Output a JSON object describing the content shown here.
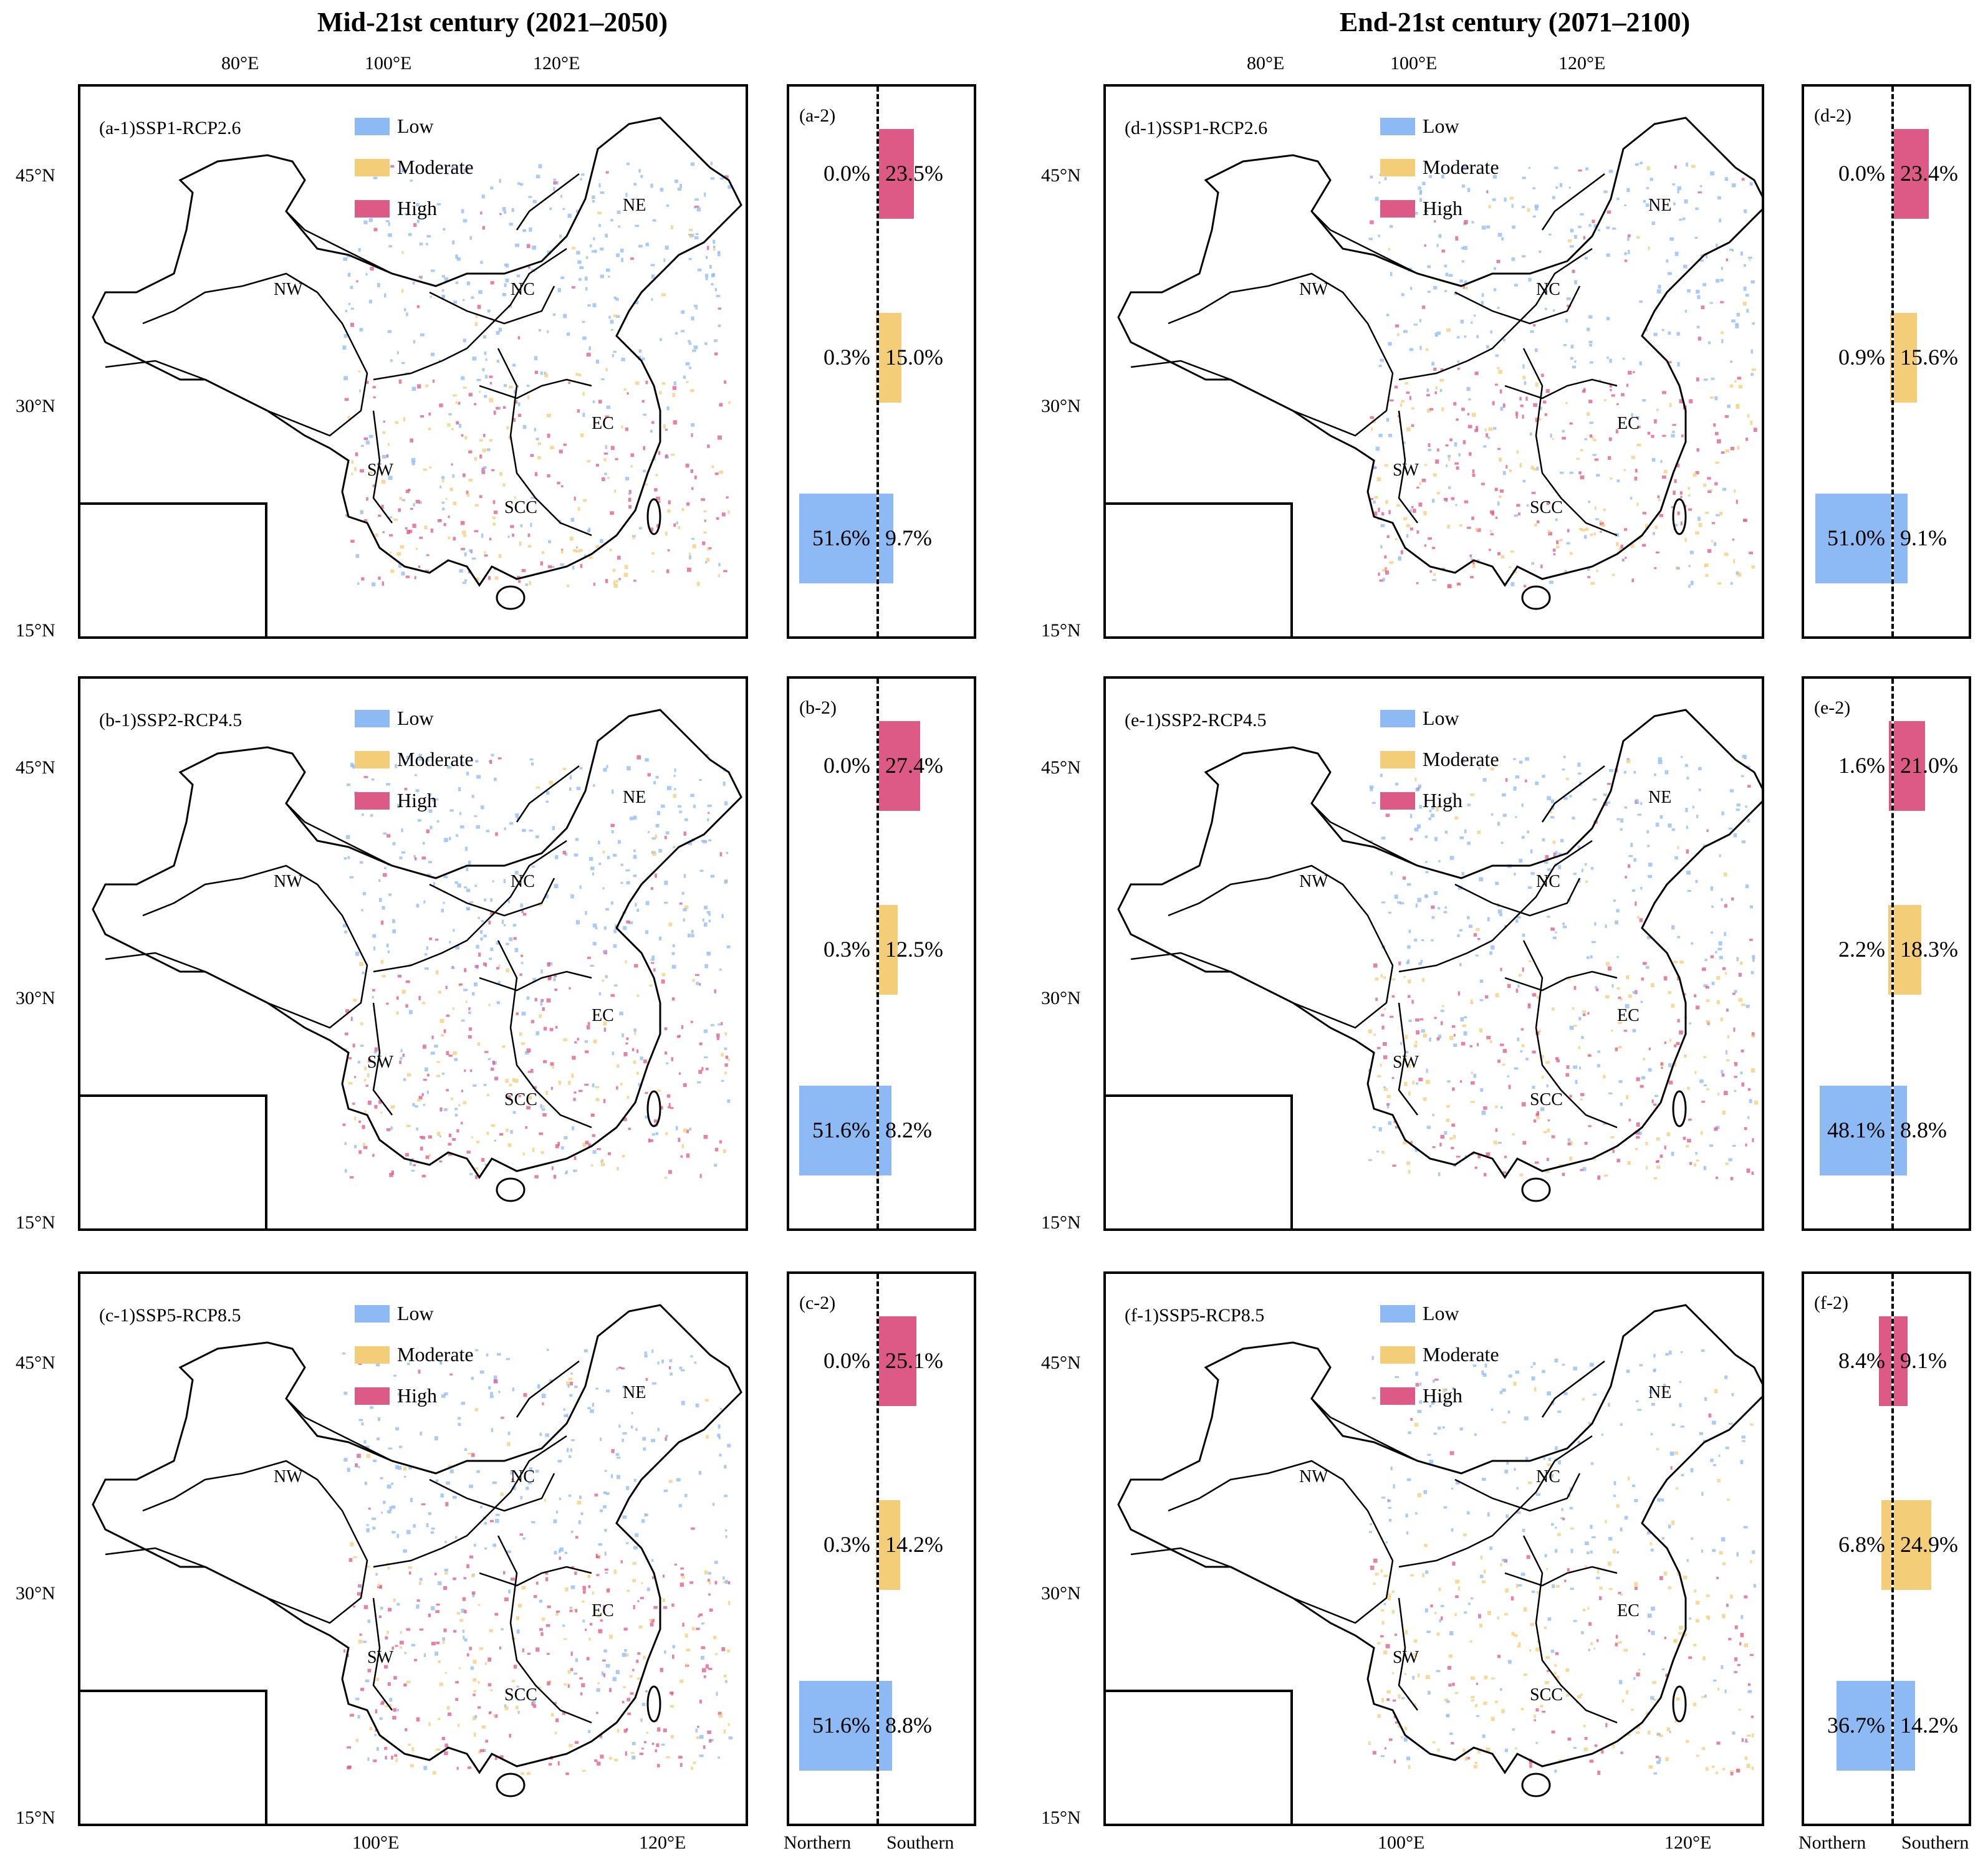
{
  "titles": {
    "mid": "Mid-21st century (2021–2050)",
    "end": "End-21st century (2071–2100)"
  },
  "legend": {
    "low": "Low",
    "moderate": "Moderate",
    "high": "High"
  },
  "colors": {
    "low": "#8db9f4",
    "moderate": "#f3cd78",
    "high": "#de5a86"
  },
  "axes": {
    "top_lon": [
      "80°E",
      "100°E",
      "120°E"
    ],
    "bottom_lon": [
      "100°E",
      "120°E"
    ],
    "lat": [
      "45°N",
      "30°N",
      "15°N"
    ],
    "bar_x": [
      "Northern",
      "Southern"
    ]
  },
  "regions": [
    "NE",
    "NW",
    "NC",
    "EC",
    "SW",
    "SCC"
  ],
  "panels": {
    "a": {
      "map_label": "(a-1)SSP1-RCP2.6",
      "bar_label": "(a-2)",
      "high": {
        "north": "0.0%",
        "south": "23.5%"
      },
      "moderate": {
        "north": "0.3%",
        "south": "15.0%"
      },
      "low": {
        "north": "51.6%",
        "south": "9.7%"
      }
    },
    "b": {
      "map_label": "(b-1)SSP2-RCP4.5",
      "bar_label": "(b-2)",
      "high": {
        "north": "0.0%",
        "south": "27.4%"
      },
      "moderate": {
        "north": "0.3%",
        "south": "12.5%"
      },
      "low": {
        "north": "51.6%",
        "south": "8.2%"
      }
    },
    "c": {
      "map_label": "(c-1)SSP5-RCP8.5",
      "bar_label": "(c-2)",
      "high": {
        "north": "0.0%",
        "south": "25.1%"
      },
      "moderate": {
        "north": "0.3%",
        "south": "14.2%"
      },
      "low": {
        "north": "51.6%",
        "south": "8.8%"
      }
    },
    "d": {
      "map_label": "(d-1)SSP1-RCP2.6",
      "bar_label": "(d-2)",
      "high": {
        "north": "0.0%",
        "south": "23.4%"
      },
      "moderate": {
        "north": "0.9%",
        "south": "15.6%"
      },
      "low": {
        "north": "51.0%",
        "south": "9.1%"
      }
    },
    "e": {
      "map_label": "(e-1)SSP2-RCP4.5",
      "bar_label": "(e-2)",
      "high": {
        "north": "1.6%",
        "south": "21.0%"
      },
      "moderate": {
        "north": "2.2%",
        "south": "18.3%"
      },
      "low": {
        "north": "48.1%",
        "south": "8.8%"
      }
    },
    "f": {
      "map_label": "(f-1)SSP5-RCP8.5",
      "bar_label": "(f-2)",
      "high": {
        "north": "8.4%",
        "south": "9.1%"
      },
      "moderate": {
        "north": "6.8%",
        "south": "24.9%"
      },
      "low": {
        "north": "36.7%",
        "south": "14.2%"
      }
    }
  }
}
